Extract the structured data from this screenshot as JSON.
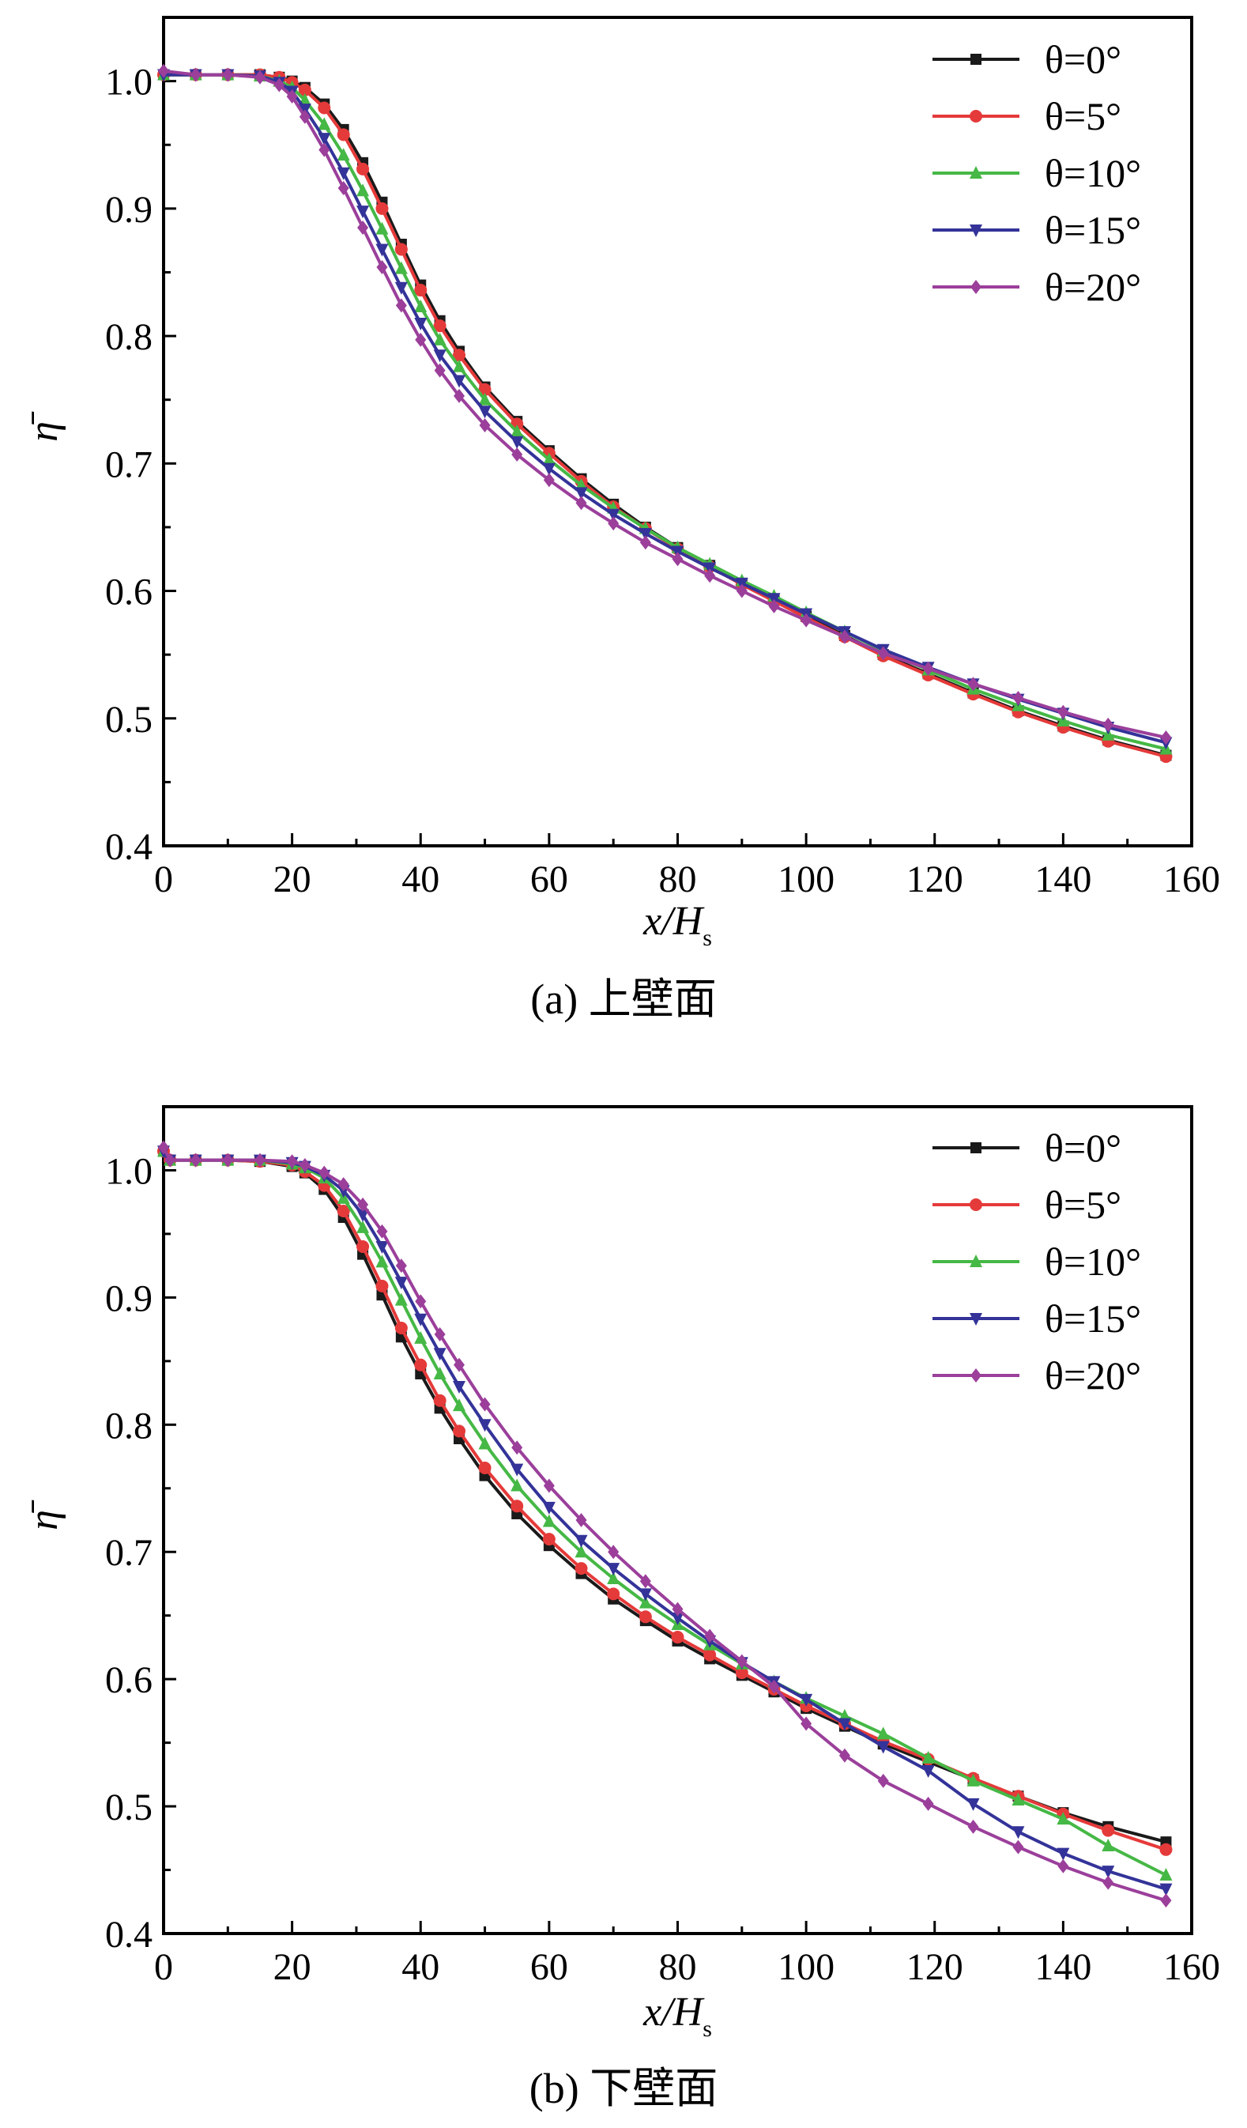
{
  "chart_data": [
    {
      "type": "line",
      "caption": "(a) 上壁面",
      "xlabel": "x/H",
      "xlabel_sub": "s",
      "ylabel": "η̄",
      "xlim": [
        0,
        160
      ],
      "ylim": [
        0.4,
        1.05
      ],
      "xticks": [
        0,
        20,
        40,
        60,
        80,
        100,
        120,
        140,
        160
      ],
      "xtick_labels": [
        "0",
        "20",
        "40",
        "60",
        "80",
        "100",
        "120",
        "140",
        "160"
      ],
      "yticks": [
        0.4,
        0.5,
        0.6,
        0.7,
        0.8,
        0.9,
        1.0
      ],
      "ytick_labels": [
        "0.4",
        "0.5",
        "0.6",
        "0.7",
        "0.8",
        "0.9",
        "1.0"
      ],
      "legend_position": "top-right",
      "series": [
        {
          "name": "θ=0°",
          "color": "#1a1a1a",
          "marker": "square",
          "x": [
            0,
            5,
            10,
            15,
            18,
            20,
            22,
            25,
            28,
            31,
            34,
            37,
            40,
            43,
            46,
            50,
            55,
            60,
            65,
            70,
            75,
            80,
            85,
            90,
            95,
            100,
            106,
            112,
            119,
            126,
            133,
            140,
            147,
            156
          ],
          "y": [
            1.005,
            1.005,
            1.005,
            1.005,
            1.003,
            1.0,
            0.995,
            0.982,
            0.962,
            0.936,
            0.905,
            0.872,
            0.84,
            0.812,
            0.788,
            0.76,
            0.733,
            0.71,
            0.688,
            0.668,
            0.65,
            0.634,
            0.62,
            0.606,
            0.593,
            0.58,
            0.565,
            0.55,
            0.535,
            0.52,
            0.506,
            0.494,
            0.483,
            0.471
          ]
        },
        {
          "name": "θ=5°",
          "color": "#e53a3a",
          "marker": "circle",
          "x": [
            0,
            5,
            10,
            15,
            18,
            20,
            22,
            25,
            28,
            31,
            34,
            37,
            40,
            43,
            46,
            50,
            55,
            60,
            65,
            70,
            75,
            80,
            85,
            90,
            95,
            100,
            106,
            112,
            119,
            126,
            133,
            140,
            147,
            156
          ],
          "y": [
            1.005,
            1.005,
            1.005,
            1.005,
            1.003,
            0.999,
            0.993,
            0.979,
            0.958,
            0.931,
            0.9,
            0.868,
            0.836,
            0.808,
            0.785,
            0.758,
            0.731,
            0.708,
            0.686,
            0.666,
            0.649,
            0.633,
            0.619,
            0.605,
            0.592,
            0.579,
            0.564,
            0.549,
            0.534,
            0.519,
            0.505,
            0.493,
            0.482,
            0.47
          ]
        },
        {
          "name": "θ=10°",
          "color": "#45b845",
          "marker": "triangle-up",
          "x": [
            0,
            5,
            10,
            15,
            18,
            20,
            22,
            25,
            28,
            31,
            34,
            37,
            40,
            43,
            46,
            50,
            55,
            60,
            65,
            70,
            75,
            80,
            85,
            90,
            95,
            100,
            106,
            112,
            119,
            126,
            133,
            140,
            147,
            156
          ],
          "y": [
            1.005,
            1.005,
            1.005,
            1.004,
            1.0,
            0.995,
            0.985,
            0.966,
            0.942,
            0.914,
            0.884,
            0.853,
            0.823,
            0.797,
            0.776,
            0.75,
            0.725,
            0.703,
            0.683,
            0.665,
            0.649,
            0.634,
            0.621,
            0.608,
            0.596,
            0.583,
            0.568,
            0.553,
            0.538,
            0.523,
            0.51,
            0.498,
            0.487,
            0.476
          ]
        },
        {
          "name": "θ=15°",
          "color": "#333399",
          "marker": "triangle-down",
          "x": [
            0,
            5,
            10,
            15,
            18,
            20,
            22,
            25,
            28,
            31,
            34,
            37,
            40,
            43,
            46,
            50,
            55,
            60,
            65,
            70,
            75,
            80,
            85,
            90,
            95,
            100,
            106,
            112,
            119,
            126,
            133,
            140,
            147,
            156
          ],
          "y": [
            1.005,
            1.005,
            1.005,
            1.004,
            0.999,
            0.992,
            0.978,
            0.955,
            0.928,
            0.898,
            0.868,
            0.838,
            0.81,
            0.785,
            0.765,
            0.741,
            0.717,
            0.696,
            0.677,
            0.66,
            0.645,
            0.631,
            0.618,
            0.606,
            0.594,
            0.582,
            0.568,
            0.554,
            0.54,
            0.527,
            0.515,
            0.504,
            0.493,
            0.481
          ]
        },
        {
          "name": "θ=20°",
          "color": "#9b3f9b",
          "marker": "diamond",
          "x": [
            0,
            5,
            10,
            15,
            18,
            20,
            22,
            25,
            28,
            31,
            34,
            37,
            40,
            43,
            46,
            50,
            55,
            60,
            65,
            70,
            75,
            80,
            85,
            90,
            95,
            100,
            106,
            112,
            119,
            126,
            133,
            140,
            147,
            156
          ],
          "y": [
            1.008,
            1.005,
            1.005,
            1.003,
            0.997,
            0.988,
            0.972,
            0.946,
            0.916,
            0.885,
            0.854,
            0.824,
            0.797,
            0.773,
            0.753,
            0.73,
            0.707,
            0.687,
            0.669,
            0.653,
            0.638,
            0.625,
            0.612,
            0.6,
            0.588,
            0.577,
            0.564,
            0.551,
            0.539,
            0.527,
            0.516,
            0.505,
            0.495,
            0.485
          ]
        }
      ]
    },
    {
      "type": "line",
      "caption": "(b) 下壁面",
      "xlabel": "x/H",
      "xlabel_sub": "s",
      "ylabel": "η̄",
      "xlim": [
        0,
        160
      ],
      "ylim": [
        0.4,
        1.05
      ],
      "xticks": [
        0,
        20,
        40,
        60,
        80,
        100,
        120,
        140,
        160
      ],
      "xtick_labels": [
        "0",
        "20",
        "40",
        "60",
        "80",
        "100",
        "120",
        "140",
        "160"
      ],
      "yticks": [
        0.4,
        0.5,
        0.6,
        0.7,
        0.8,
        0.9,
        1.0
      ],
      "ytick_labels": [
        "0.4",
        "0.5",
        "0.6",
        "0.7",
        "0.8",
        "0.9",
        "1.0"
      ],
      "legend_position": "top-right",
      "series": [
        {
          "name": "θ=0°",
          "color": "#1a1a1a",
          "marker": "square",
          "x": [
            0,
            1,
            5,
            10,
            15,
            20,
            22,
            25,
            28,
            31,
            34,
            37,
            40,
            43,
            46,
            50,
            55,
            60,
            65,
            70,
            75,
            80,
            85,
            90,
            95,
            100,
            106,
            112,
            119,
            126,
            133,
            140,
            147,
            156
          ],
          "y": [
            1.015,
            1.008,
            1.008,
            1.008,
            1.007,
            1.003,
            0.998,
            0.985,
            0.963,
            0.934,
            0.902,
            0.869,
            0.84,
            0.813,
            0.789,
            0.76,
            0.73,
            0.705,
            0.683,
            0.663,
            0.646,
            0.63,
            0.616,
            0.603,
            0.59,
            0.577,
            0.563,
            0.549,
            0.535,
            0.521,
            0.508,
            0.495,
            0.484,
            0.472
          ]
        },
        {
          "name": "θ=5°",
          "color": "#e53a3a",
          "marker": "circle",
          "x": [
            0,
            1,
            5,
            10,
            15,
            20,
            22,
            25,
            28,
            31,
            34,
            37,
            40,
            43,
            46,
            50,
            55,
            60,
            65,
            70,
            75,
            80,
            85,
            90,
            95,
            100,
            106,
            112,
            119,
            126,
            133,
            140,
            147,
            156
          ],
          "y": [
            1.015,
            1.008,
            1.008,
            1.008,
            1.007,
            1.004,
            0.999,
            0.988,
            0.968,
            0.94,
            0.909,
            0.876,
            0.847,
            0.819,
            0.795,
            0.766,
            0.736,
            0.71,
            0.687,
            0.667,
            0.649,
            0.633,
            0.619,
            0.605,
            0.592,
            0.579,
            0.565,
            0.551,
            0.537,
            0.522,
            0.508,
            0.494,
            0.481,
            0.466
          ]
        },
        {
          "name": "θ=10°",
          "color": "#45b845",
          "marker": "triangle-up",
          "x": [
            0,
            1,
            5,
            10,
            15,
            20,
            22,
            25,
            28,
            31,
            34,
            37,
            40,
            43,
            46,
            50,
            55,
            60,
            65,
            70,
            75,
            80,
            85,
            90,
            95,
            100,
            106,
            112,
            119,
            126,
            133,
            140,
            147,
            156
          ],
          "y": [
            1.015,
            1.008,
            1.008,
            1.008,
            1.008,
            1.005,
            1.002,
            0.994,
            0.978,
            0.955,
            0.928,
            0.898,
            0.868,
            0.84,
            0.815,
            0.785,
            0.752,
            0.724,
            0.7,
            0.679,
            0.66,
            0.643,
            0.627,
            0.612,
            0.598,
            0.585,
            0.571,
            0.557,
            0.538,
            0.52,
            0.505,
            0.49,
            0.469,
            0.446
          ]
        },
        {
          "name": "θ=15°",
          "color": "#333399",
          "marker": "triangle-down",
          "x": [
            0,
            1,
            5,
            10,
            15,
            20,
            22,
            25,
            28,
            31,
            34,
            37,
            40,
            43,
            46,
            50,
            55,
            60,
            65,
            70,
            75,
            80,
            85,
            90,
            95,
            100,
            106,
            112,
            119,
            126,
            133,
            140,
            147,
            156
          ],
          "y": [
            1.015,
            1.008,
            1.008,
            1.008,
            1.008,
            1.006,
            1.003,
            0.996,
            0.984,
            0.965,
            0.94,
            0.912,
            0.883,
            0.856,
            0.83,
            0.8,
            0.765,
            0.735,
            0.709,
            0.687,
            0.667,
            0.648,
            0.63,
            0.613,
            0.598,
            0.584,
            0.565,
            0.547,
            0.528,
            0.502,
            0.48,
            0.463,
            0.449,
            0.435
          ]
        },
        {
          "name": "θ=20°",
          "color": "#9b3f9b",
          "marker": "diamond",
          "x": [
            0,
            1,
            5,
            10,
            15,
            20,
            22,
            25,
            28,
            31,
            34,
            37,
            40,
            43,
            46,
            50,
            55,
            60,
            65,
            70,
            75,
            80,
            85,
            90,
            95,
            100,
            106,
            112,
            119,
            126,
            133,
            140,
            147,
            156
          ],
          "y": [
            1.018,
            1.008,
            1.008,
            1.008,
            1.008,
            1.007,
            1.004,
            0.998,
            0.989,
            0.973,
            0.952,
            0.925,
            0.897,
            0.871,
            0.847,
            0.816,
            0.782,
            0.752,
            0.725,
            0.7,
            0.677,
            0.655,
            0.634,
            0.614,
            0.594,
            0.565,
            0.54,
            0.52,
            0.502,
            0.484,
            0.468,
            0.453,
            0.44,
            0.426
          ]
        }
      ]
    }
  ]
}
